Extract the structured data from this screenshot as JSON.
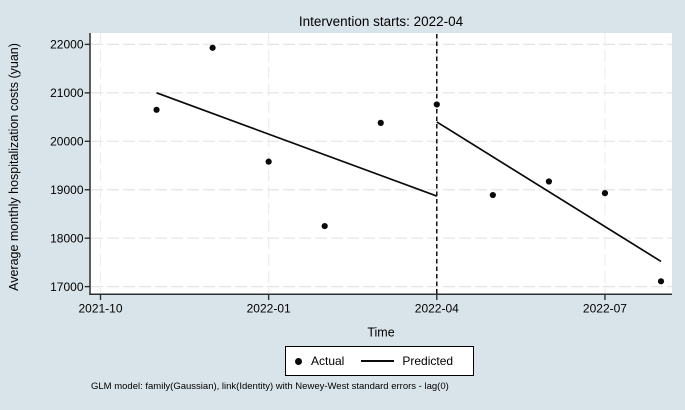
{
  "canvas": {
    "bg": "#d9e4ea",
    "plot_bg": "#ffffff",
    "axis_color": "#2f2f2f",
    "grid_color": "#e4e4e4",
    "grid_color_vertical": "#ededed",
    "data_color": "#0a0a0a"
  },
  "title": "Intervention starts: 2022-04",
  "x_axis": {
    "label": "Time",
    "ticks": [
      "2021-10",
      "2022-01",
      "2022-04",
      "2022-07"
    ]
  },
  "y_axis": {
    "label": "Average monthly hospitalization costs (yuan)",
    "ticks": [
      "22000",
      "21000",
      "20000",
      "19000",
      "18000",
      "17000"
    ]
  },
  "legend": {
    "actual": "Actual",
    "predicted": "Predicted"
  },
  "note": "GLM model: family(Gaussian), link(Identity) with Newey-West standard errors - lag(0)",
  "chart_data": {
    "type": "scatter",
    "title": "Intervention starts: 2022-04",
    "xlabel": "Time",
    "ylabel": "Average monthly hospitalization costs (yuan)",
    "x_domain": [
      "2021-10",
      "2022-08"
    ],
    "ylim": [
      16850,
      22240
    ],
    "y_ticks": [
      17000,
      18000,
      19000,
      20000,
      21000,
      22000
    ],
    "intervention_x": "2022-04",
    "grid": true,
    "legend_position": "bottom",
    "series": [
      {
        "name": "Actual",
        "type": "scatter",
        "points": [
          [
            "2021-11",
            20650
          ],
          [
            "2021-12",
            21930
          ],
          [
            "2022-01",
            19580
          ],
          [
            "2022-02",
            18250
          ],
          [
            "2022-03",
            20380
          ],
          [
            "2022-04",
            20760
          ],
          [
            "2022-05",
            18890
          ],
          [
            "2022-06",
            19170
          ],
          [
            "2022-07",
            18930
          ],
          [
            "2022-08",
            17110
          ]
        ]
      },
      {
        "name": "Predicted (pre-intervention)",
        "type": "line",
        "points": [
          [
            "2021-11",
            21000
          ],
          [
            "2022-04",
            18870
          ]
        ]
      },
      {
        "name": "Predicted (post-intervention)",
        "type": "line",
        "points": [
          [
            "2022-04",
            20400
          ],
          [
            "2022-08",
            17520
          ]
        ]
      }
    ]
  }
}
